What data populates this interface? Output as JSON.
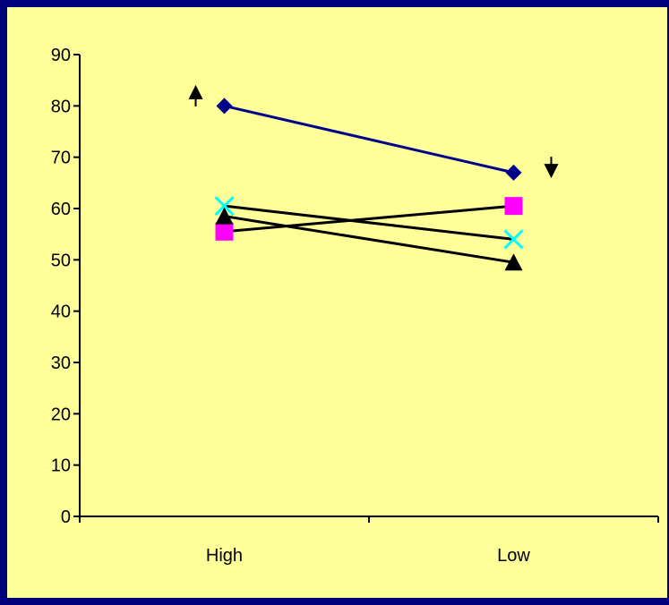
{
  "chart_data": {
    "type": "line",
    "categories": [
      "High",
      "Low"
    ],
    "ylim": [
      0,
      90
    ],
    "yticks": [
      0,
      10,
      20,
      30,
      40,
      50,
      60,
      70,
      80,
      90
    ],
    "grid": false,
    "legend": "none",
    "series": [
      {
        "values": [
          80,
          67
        ],
        "line_color": "#00008b",
        "marker": "diamond",
        "marker_color": "#00008b"
      },
      {
        "values": [
          55.5,
          60.5
        ],
        "line_color": "#000000",
        "marker": "square",
        "marker_color": "#ff00ff"
      },
      {
        "values": [
          60.5,
          54
        ],
        "line_color": "#000000",
        "marker": "x",
        "marker_color": "#00ffff"
      },
      {
        "values": [
          58.5,
          49.5
        ],
        "line_color": "#000000",
        "marker": "triangle",
        "marker_color": "#000000"
      }
    ],
    "annotations": [
      {
        "type": "arrow-up",
        "category": "High",
        "y": 82
      },
      {
        "type": "arrow-down",
        "category": "Low",
        "y": 68
      }
    ],
    "colors": {
      "background": "#ffff99",
      "border": "#00007a",
      "axis": "#000000"
    }
  }
}
